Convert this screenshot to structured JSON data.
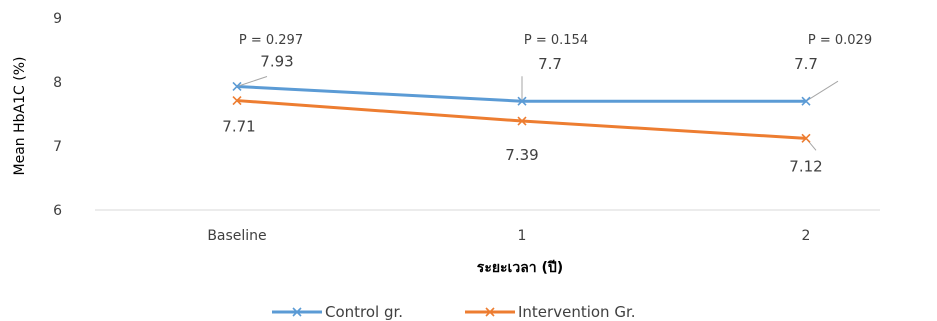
{
  "chart_data": {
    "type": "line",
    "categories": [
      "Baseline",
      "1",
      "2"
    ],
    "ylabel": "Mean HbA1C (%)",
    "xlabel": "ระยะเวลา (ปี)",
    "ylim": [
      6,
      9
    ],
    "yticks": [
      "6",
      "7",
      "8",
      "9"
    ],
    "grid": false,
    "legend_position": "bottom",
    "series": [
      {
        "name": "Control gr.",
        "color": "#5B9BD5",
        "values": [
          7.93,
          7.7,
          7.7
        ],
        "labels": [
          "7.93",
          "7.7",
          "7.7"
        ]
      },
      {
        "name": "Intervention Gr.",
        "color": "#ED7D31",
        "values": [
          7.71,
          7.39,
          7.12
        ],
        "labels": [
          "7.71",
          "7.39",
          "7.12"
        ]
      }
    ],
    "p_values": [
      "P = 0.297",
      "P = 0.154",
      "P = 0.029"
    ]
  }
}
